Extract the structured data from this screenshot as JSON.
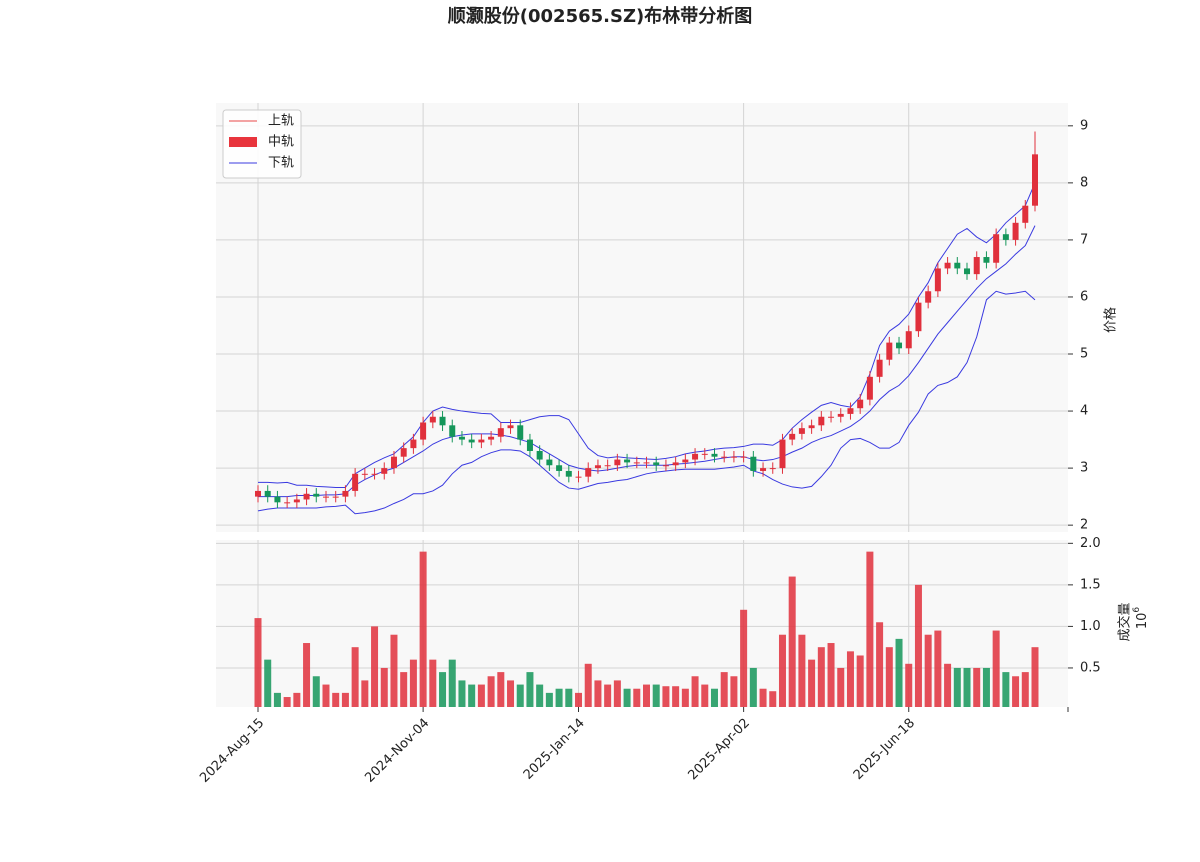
{
  "chart_data": {
    "type": "candlestick",
    "title": "顺灏股份(002565.SZ)布林带分析图",
    "categories": [
      "2024-Aug-15",
      null,
      null,
      null,
      null,
      null,
      null,
      null,
      null,
      null,
      null,
      null,
      null,
      null,
      null,
      null,
      null,
      "2024-Nov-04",
      null,
      null,
      null,
      null,
      null,
      null,
      null,
      null,
      null,
      null,
      null,
      null,
      null,
      null,
      null,
      "2025-Jan-14",
      null,
      null,
      null,
      null,
      null,
      null,
      null,
      null,
      null,
      null,
      null,
      null,
      null,
      null,
      null,
      null,
      "2025-Apr-02",
      null,
      null,
      null,
      null,
      null,
      null,
      null,
      null,
      null,
      null,
      null,
      null,
      null,
      null,
      null,
      null,
      "2025-Jun-18",
      null,
      null,
      null,
      null,
      null,
      null,
      null,
      null,
      null,
      null,
      null,
      null,
      null
    ],
    "open": [
      2.5,
      2.6,
      2.5,
      2.4,
      2.4,
      2.45,
      2.55,
      2.5,
      2.5,
      2.5,
      2.6,
      2.9,
      2.9,
      2.9,
      3.0,
      3.2,
      3.35,
      3.5,
      3.8,
      3.9,
      3.75,
      3.55,
      3.5,
      3.45,
      3.5,
      3.55,
      3.7,
      3.75,
      3.5,
      3.3,
      3.15,
      3.05,
      2.95,
      2.85,
      2.85,
      3.0,
      3.05,
      3.05,
      3.15,
      3.1,
      3.1,
      3.1,
      3.05,
      3.05,
      3.1,
      3.15,
      3.25,
      3.25,
      3.2,
      3.2,
      3.2,
      3.2,
      2.95,
      3.0,
      3.0,
      3.5,
      3.6,
      3.7,
      3.75,
      3.9,
      3.9,
      3.95,
      4.05,
      4.2,
      4.6,
      4.9,
      5.2,
      5.1,
      5.4,
      5.9,
      6.1,
      6.5,
      6.6,
      6.5,
      6.4,
      6.7,
      6.6,
      7.1,
      7.0,
      7.3,
      7.6
    ],
    "high": [
      2.7,
      2.7,
      2.6,
      2.5,
      2.55,
      2.65,
      2.65,
      2.6,
      2.6,
      2.7,
      3.0,
      3.0,
      3.0,
      3.1,
      3.3,
      3.45,
      3.6,
      3.9,
      4.0,
      4.0,
      3.85,
      3.65,
      3.6,
      3.6,
      3.65,
      3.8,
      3.85,
      3.85,
      3.6,
      3.4,
      3.25,
      3.15,
      3.05,
      2.95,
      3.1,
      3.15,
      3.15,
      3.25,
      3.25,
      3.2,
      3.2,
      3.2,
      3.15,
      3.2,
      3.25,
      3.35,
      3.35,
      3.35,
      3.3,
      3.3,
      3.3,
      3.3,
      3.1,
      3.1,
      3.6,
      3.7,
      3.8,
      3.85,
      4.0,
      4.0,
      4.05,
      4.15,
      4.3,
      4.7,
      5.0,
      5.3,
      5.3,
      5.5,
      6.0,
      6.2,
      6.6,
      6.7,
      6.7,
      6.6,
      6.8,
      6.8,
      7.2,
      7.2,
      7.4,
      7.7,
      8.9
    ],
    "low": [
      2.4,
      2.4,
      2.3,
      2.3,
      2.3,
      2.35,
      2.4,
      2.4,
      2.4,
      2.4,
      2.5,
      2.8,
      2.8,
      2.8,
      2.9,
      3.1,
      3.25,
      3.4,
      3.7,
      3.65,
      3.45,
      3.4,
      3.35,
      3.35,
      3.4,
      3.45,
      3.6,
      3.4,
      3.2,
      3.05,
      2.95,
      2.85,
      2.75,
      2.75,
      2.75,
      2.9,
      2.95,
      2.95,
      3.0,
      3.0,
      3.0,
      2.95,
      2.95,
      2.95,
      3.0,
      3.05,
      3.15,
      3.1,
      3.1,
      3.1,
      3.1,
      2.85,
      2.85,
      2.9,
      2.9,
      3.4,
      3.5,
      3.6,
      3.65,
      3.8,
      3.8,
      3.85,
      3.95,
      4.1,
      4.5,
      4.8,
      5.0,
      5.0,
      5.3,
      5.8,
      6.0,
      6.4,
      6.4,
      6.3,
      6.3,
      6.5,
      6.5,
      6.9,
      6.9,
      7.2,
      7.5
    ],
    "close": [
      2.6,
      2.5,
      2.4,
      2.4,
      2.45,
      2.55,
      2.5,
      2.5,
      2.5,
      2.6,
      2.9,
      2.9,
      2.9,
      3.0,
      3.2,
      3.35,
      3.5,
      3.8,
      3.9,
      3.75,
      3.55,
      3.5,
      3.45,
      3.5,
      3.55,
      3.7,
      3.75,
      3.5,
      3.3,
      3.15,
      3.05,
      2.95,
      2.85,
      2.85,
      3.0,
      3.05,
      3.05,
      3.15,
      3.1,
      3.1,
      3.1,
      3.05,
      3.05,
      3.1,
      3.15,
      3.25,
      3.25,
      3.2,
      3.2,
      3.2,
      3.2,
      2.95,
      3.0,
      3.0,
      3.5,
      3.6,
      3.7,
      3.75,
      3.9,
      3.9,
      3.95,
      4.05,
      4.2,
      4.6,
      4.9,
      5.2,
      5.1,
      5.4,
      5.9,
      6.1,
      6.5,
      6.6,
      6.5,
      6.4,
      6.7,
      6.6,
      7.1,
      7.0,
      7.3,
      7.6,
      8.5
    ],
    "volume": [
      1.1,
      0.6,
      0.2,
      0.15,
      0.2,
      0.8,
      0.4,
      0.3,
      0.2,
      0.2,
      0.75,
      0.35,
      1.0,
      0.5,
      0.9,
      0.45,
      0.6,
      1.9,
      0.6,
      0.45,
      0.6,
      0.35,
      0.3,
      0.3,
      0.4,
      0.45,
      0.35,
      0.3,
      0.45,
      0.3,
      0.2,
      0.25,
      0.25,
      0.2,
      0.55,
      0.35,
      0.3,
      0.35,
      0.25,
      0.25,
      0.3,
      0.3,
      0.28,
      0.28,
      0.25,
      0.4,
      0.3,
      0.25,
      0.45,
      0.4,
      1.2,
      0.5,
      0.25,
      0.22,
      0.9,
      1.6,
      0.9,
      0.6,
      0.75,
      0.8,
      0.5,
      0.7,
      0.65,
      1.9,
      1.05,
      0.75,
      0.85,
      0.55,
      1.5,
      0.9,
      0.95,
      0.55,
      0.5,
      0.5,
      0.5,
      0.5,
      0.95,
      0.45,
      0.4,
      0.45,
      0.75
    ],
    "up_color": "#e0303c",
    "down_color": "#15965a",
    "bands": {
      "color": "#3a3ae0",
      "upper": [
        2.75,
        2.75,
        2.74,
        2.75,
        2.7,
        2.7,
        2.68,
        2.67,
        2.66,
        2.66,
        2.9,
        3.0,
        3.1,
        3.18,
        3.25,
        3.4,
        3.55,
        3.8,
        4.0,
        4.07,
        4.03,
        4.0,
        3.98,
        3.96,
        3.95,
        3.8,
        3.8,
        3.8,
        3.85,
        3.9,
        3.92,
        3.92,
        3.85,
        3.6,
        3.35,
        3.22,
        3.18,
        3.2,
        3.18,
        3.17,
        3.16,
        3.15,
        3.17,
        3.2,
        3.25,
        3.28,
        3.3,
        3.33,
        3.35,
        3.36,
        3.38,
        3.42,
        3.42,
        3.4,
        3.5,
        3.7,
        3.85,
        3.98,
        4.1,
        4.15,
        4.1,
        4.07,
        4.25,
        4.65,
        5.15,
        5.4,
        5.52,
        5.7,
        6.0,
        6.25,
        6.6,
        6.85,
        7.1,
        7.2,
        7.05,
        6.95,
        7.1,
        7.3,
        7.45,
        7.6,
        8.0
      ],
      "middle": [
        2.5,
        2.5,
        2.5,
        2.5,
        2.52,
        2.52,
        2.52,
        2.53,
        2.53,
        2.55,
        2.7,
        2.8,
        2.88,
        2.95,
        3.0,
        3.1,
        3.2,
        3.3,
        3.42,
        3.5,
        3.55,
        3.58,
        3.6,
        3.6,
        3.6,
        3.58,
        3.55,
        3.5,
        3.45,
        3.35,
        3.25,
        3.15,
        3.05,
        3.0,
        2.97,
        2.95,
        2.97,
        3.0,
        3.03,
        3.05,
        3.05,
        3.05,
        3.05,
        3.07,
        3.08,
        3.1,
        3.12,
        3.15,
        3.18,
        3.2,
        3.2,
        3.15,
        3.13,
        3.15,
        3.2,
        3.28,
        3.35,
        3.45,
        3.52,
        3.57,
        3.65,
        3.73,
        3.85,
        4.0,
        4.2,
        4.35,
        4.45,
        4.62,
        4.85,
        5.1,
        5.35,
        5.55,
        5.75,
        5.95,
        6.15,
        6.32,
        6.45,
        6.58,
        6.75,
        6.9,
        7.25
      ],
      "lower": [
        2.25,
        2.28,
        2.3,
        2.3,
        2.3,
        2.3,
        2.3,
        2.32,
        2.33,
        2.35,
        2.2,
        2.22,
        2.25,
        2.3,
        2.38,
        2.45,
        2.55,
        2.55,
        2.6,
        2.7,
        2.9,
        3.05,
        3.1,
        3.2,
        3.27,
        3.32,
        3.32,
        3.3,
        3.2,
        3.05,
        2.9,
        2.75,
        2.65,
        2.63,
        2.68,
        2.73,
        2.75,
        2.78,
        2.8,
        2.85,
        2.9,
        2.93,
        2.95,
        2.97,
        2.98,
        2.98,
        2.98,
        2.98,
        3.0,
        3.02,
        3.05,
        2.95,
        2.9,
        2.8,
        2.72,
        2.67,
        2.65,
        2.68,
        2.85,
        3.05,
        3.35,
        3.5,
        3.52,
        3.45,
        3.35,
        3.35,
        3.45,
        3.75,
        3.98,
        4.3,
        4.45,
        4.5,
        4.6,
        4.85,
        5.3,
        5.95,
        6.1,
        6.05,
        6.07,
        6.1,
        5.95
      ]
    },
    "legend": {
      "position": "upper left",
      "entries": [
        {
          "name": "上轨",
          "color": "#e84848",
          "style": "line"
        },
        {
          "name": "中轨",
          "color": "#e8343c",
          "style": "patch"
        },
        {
          "name": "下轨",
          "color": "#3a3ae0",
          "style": "line"
        }
      ]
    },
    "ylabel": "价格",
    "ylim": [
      1.88,
      9.4
    ],
    "yticks": [
      2,
      3,
      4,
      5,
      6,
      7,
      8,
      9
    ],
    "volume_label": "成交量",
    "volume_offset": {
      "base": "10",
      "exponent": "6"
    },
    "volume_ylim": [
      0.03,
      2.04
    ],
    "volume_yticks": [
      0.5,
      {
        "value": 1,
        "label": "1.0"
      },
      1.5,
      {
        "value": 2,
        "label": "2.0"
      }
    ],
    "grid": true
  }
}
